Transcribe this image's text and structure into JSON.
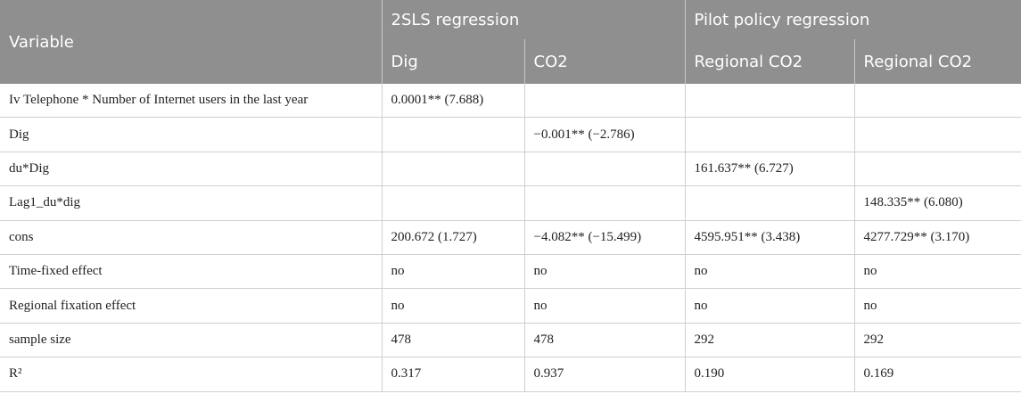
{
  "table": {
    "header": {
      "variable": "Variable",
      "groups": [
        "2SLS regression",
        "Pilot policy regression"
      ],
      "columns": [
        "Dig",
        "CO2",
        "Regional CO2",
        "Regional CO2"
      ]
    },
    "rows": [
      [
        "Iv Telephone * Number of Internet users in the last year",
        "0.0001** (7.688)",
        null,
        null,
        null
      ],
      [
        "Dig",
        null,
        "−0.001** (−2.786)",
        null,
        null
      ],
      [
        "du*Dig",
        null,
        null,
        "161.637** (6.727)",
        null
      ],
      [
        "Lag1_du*dig",
        null,
        null,
        null,
        "148.335** (6.080)"
      ],
      [
        "cons",
        "200.672 (1.727)",
        "−4.082** (−15.499)",
        "4595.951** (3.438)",
        "4277.729** (3.170)"
      ],
      [
        "Time-fixed effect",
        "no",
        "no",
        "no",
        "no"
      ],
      [
        "Regional fixation effect",
        "no",
        "no",
        "no",
        "no"
      ],
      [
        "sample size",
        "478",
        "478",
        "292",
        "292"
      ],
      [
        "R²",
        "0.317",
        "0.937",
        "0.190",
        "0.169"
      ]
    ]
  }
}
